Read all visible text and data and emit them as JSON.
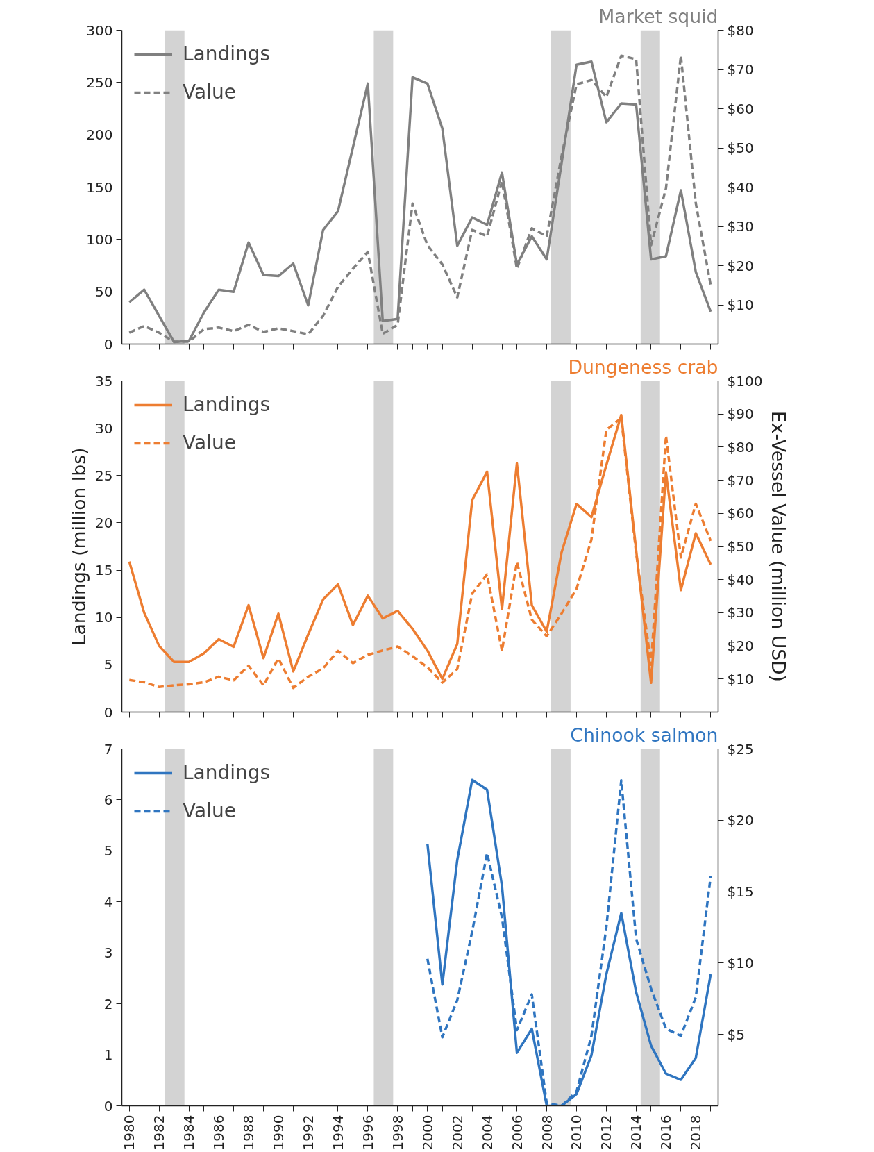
{
  "chart_data": [
    {
      "type": "line",
      "title": "Market squid",
      "x": [
        1980,
        1981,
        1982,
        1983,
        1984,
        1985,
        1986,
        1987,
        1988,
        1989,
        1990,
        1991,
        1992,
        1993,
        1994,
        1995,
        1996,
        1997,
        1998,
        1999,
        2000,
        2001,
        2002,
        2003,
        2004,
        2005,
        2006,
        2007,
        2008,
        2009,
        2010,
        2011,
        2012,
        2013,
        2014,
        2015,
        2016,
        2017,
        2018,
        2019
      ],
      "xlim": [
        1979.5,
        2019.5
      ],
      "ylim": [
        0,
        300
      ],
      "yticks": [
        0,
        50,
        100,
        150,
        200,
        250,
        300
      ],
      "y2lim": [
        0,
        80
      ],
      "y2ticks": [
        {
          "value": 10,
          "label": "$10"
        },
        {
          "value": 20,
          "label": "$20"
        },
        {
          "value": 30,
          "label": "$30"
        },
        {
          "value": 40,
          "label": "$40"
        },
        {
          "value": 50,
          "label": "$50"
        },
        {
          "value": 60,
          "label": "$60"
        },
        {
          "value": 70,
          "label": "$70"
        },
        {
          "value": 80,
          "label": "$80"
        }
      ],
      "tick_labels": "y",
      "grid": false,
      "legend": "top left",
      "marker": "none",
      "bands": [
        {
          "axis": "x",
          "from": 1982.4,
          "to": 1983.7,
          "color": "#d3d3d3"
        },
        {
          "axis": "x",
          "from": 1996.4,
          "to": 1997.7,
          "color": "#d3d3d3"
        },
        {
          "axis": "x",
          "from": 2008.3,
          "to": 2009.6,
          "color": "#d3d3d3"
        },
        {
          "axis": "x",
          "from": 2014.3,
          "to": 2015.6,
          "color": "#d3d3d3"
        }
      ],
      "series": [
        {
          "name": "Landings",
          "color": "#808080",
          "line_style": "solid",
          "values": [
            40,
            52,
            27,
            2,
            3,
            30,
            52,
            50,
            97,
            66,
            65,
            77,
            37,
            109,
            127,
            188,
            249,
            22,
            24,
            255,
            249,
            206,
            94,
            121,
            114,
            164,
            76,
            103,
            81,
            173,
            267,
            270,
            212,
            230,
            229,
            81,
            84,
            147,
            69,
            31
          ]
        },
        {
          "name": "Value",
          "color": "#808080",
          "line_style": "dashed",
          "axis": "y2",
          "values": [
            2.9,
            4.6,
            2.9,
            0.6,
            0.6,
            3.8,
            4.2,
            3.3,
            4.9,
            3.1,
            4.0,
            3.3,
            2.5,
            7.2,
            14.6,
            19.2,
            23.5,
            2.6,
            4.9,
            35.8,
            25.2,
            20.3,
            11.9,
            29.1,
            27.5,
            41.5,
            19.2,
            29.5,
            27.5,
            48,
            66.2,
            67.3,
            63,
            73.5,
            72.6,
            25.2,
            39.7,
            73.5,
            35.9,
            15
          ]
        }
      ]
    },
    {
      "type": "line",
      "title": "Dungeness crab",
      "ylabel": "Landings (million lbs)",
      "y2label": "Ex-Vessel Value (million USD)",
      "x": [
        1980,
        1981,
        1982,
        1983,
        1984,
        1985,
        1986,
        1987,
        1988,
        1989,
        1990,
        1991,
        1992,
        1993,
        1994,
        1995,
        1996,
        1997,
        1998,
        1999,
        2000,
        2001,
        2002,
        2003,
        2004,
        2005,
        2006,
        2007,
        2008,
        2009,
        2010,
        2011,
        2012,
        2013,
        2014,
        2015,
        2016,
        2017,
        2018,
        2019
      ],
      "xlim": [
        1979.5,
        2019.5
      ],
      "ylim": [
        0,
        35
      ],
      "yticks": [
        0,
        5,
        10,
        15,
        20,
        25,
        30,
        35
      ],
      "y2lim": [
        0,
        100
      ],
      "y2ticks": [
        {
          "value": 10,
          "label": "$10"
        },
        {
          "value": 20,
          "label": "$20"
        },
        {
          "value": 30,
          "label": "$30"
        },
        {
          "value": 40,
          "label": "$40"
        },
        {
          "value": 50,
          "label": "$50"
        },
        {
          "value": 60,
          "label": "$60"
        },
        {
          "value": 70,
          "label": "$70"
        },
        {
          "value": 80,
          "label": "$80"
        },
        {
          "value": 90,
          "label": "$90"
        },
        {
          "value": 100,
          "label": "$100"
        }
      ],
      "tick_labels": "y",
      "grid": false,
      "legend": "top left",
      "marker": "none",
      "bands": [
        {
          "axis": "x",
          "from": 1982.4,
          "to": 1983.7,
          "color": "#d3d3d3"
        },
        {
          "axis": "x",
          "from": 1996.4,
          "to": 1997.7,
          "color": "#d3d3d3"
        },
        {
          "axis": "x",
          "from": 2008.3,
          "to": 2009.6,
          "color": "#d3d3d3"
        },
        {
          "axis": "x",
          "from": 2014.3,
          "to": 2015.6,
          "color": "#d3d3d3"
        }
      ],
      "series": [
        {
          "name": "Landings",
          "color": "#ed7d31",
          "line_style": "solid",
          "values": [
            15.9,
            10.5,
            7.0,
            5.3,
            5.3,
            6.2,
            7.7,
            6.9,
            11.3,
            5.7,
            10.4,
            4.3,
            8.2,
            11.9,
            13.5,
            9.2,
            12.3,
            9.9,
            10.7,
            8.8,
            6.5,
            3.5,
            7.2,
            22.4,
            25.4,
            10.9,
            26.3,
            11.3,
            8.5,
            16.9,
            22.0,
            20.6,
            26.1,
            31.4,
            17.1,
            3.1,
            25.3,
            12.9,
            18.9,
            15.6
          ]
        },
        {
          "name": "Value",
          "color": "#ed7d31",
          "line_style": "dashed",
          "axis": "y2",
          "values": [
            9.7,
            9.0,
            7.6,
            8.1,
            8.4,
            9.0,
            10.7,
            9.6,
            14.0,
            8.1,
            16.2,
            7.3,
            10.7,
            13.2,
            18.5,
            14.8,
            17.3,
            18.6,
            19.8,
            16.9,
            13.5,
            8.9,
            13.0,
            35.8,
            41.6,
            18.5,
            45.3,
            27.9,
            22.9,
            29.8,
            37.2,
            52.1,
            85.2,
            88.8,
            48,
            14.3,
            83.4,
            46.7,
            62.9,
            51.7
          ]
        }
      ]
    },
    {
      "type": "line",
      "title": "Chinook salmon",
      "x": [
        2000,
        2001,
        2002,
        2003,
        2004,
        2005,
        2006,
        2007,
        2008,
        2009,
        2010,
        2011,
        2012,
        2013,
        2014,
        2015,
        2016,
        2017,
        2018,
        2019
      ],
      "xlim": [
        1979.5,
        2019.5
      ],
      "ylim": [
        0,
        7
      ],
      "yticks": [
        0,
        1,
        2,
        3,
        4,
        5,
        6,
        7
      ],
      "y2lim": [
        0,
        25
      ],
      "xticks": [
        1980,
        {
          "value": 1981,
          "label": null
        },
        1982,
        {
          "value": 1983,
          "label": null
        },
        1984,
        {
          "value": 1985,
          "label": null
        },
        1986,
        {
          "value": 1987,
          "label": null
        },
        1988,
        {
          "value": 1989,
          "label": null
        },
        1990,
        {
          "value": 1991,
          "label": null
        },
        1992,
        {
          "value": 1993,
          "label": null
        },
        1994,
        {
          "value": 1995,
          "label": null
        },
        1996,
        {
          "value": 1997,
          "label": null
        },
        1998,
        {
          "value": 1999,
          "label": null
        },
        2000,
        {
          "value": 2001,
          "label": null
        },
        2002,
        {
          "value": 2003,
          "label": null
        },
        2004,
        {
          "value": 2005,
          "label": null
        },
        2006,
        {
          "value": 2007,
          "label": null
        },
        2008,
        {
          "value": 2009,
          "label": null
        },
        2010,
        {
          "value": 2011,
          "label": null
        },
        2012,
        {
          "value": 2013,
          "label": null
        },
        2014,
        {
          "value": 2015,
          "label": null
        },
        2016,
        {
          "value": 2017,
          "label": null
        },
        2018,
        {
          "value": 2019,
          "label": null
        }
      ],
      "y2ticks": [
        {
          "value": 5,
          "label": "$5"
        },
        {
          "value": 10,
          "label": "$10"
        },
        {
          "value": 15,
          "label": "$15"
        },
        {
          "value": 20,
          "label": "$20"
        },
        {
          "value": 25,
          "label": "$25"
        }
      ],
      "grid": false,
      "legend": "top left",
      "marker": "none",
      "bands": [
        {
          "axis": "x",
          "from": 1982.4,
          "to": 1983.7,
          "color": "#d3d3d3"
        },
        {
          "axis": "x",
          "from": 1996.4,
          "to": 1997.7,
          "color": "#d3d3d3"
        },
        {
          "axis": "x",
          "from": 2008.3,
          "to": 2009.6,
          "color": "#d3d3d3"
        },
        {
          "axis": "x",
          "from": 2014.3,
          "to": 2015.6,
          "color": "#d3d3d3"
        }
      ],
      "series": [
        {
          "name": "Landings",
          "color": "#2f75c0",
          "line_style": "solid",
          "values": [
            5.14,
            2.38,
            4.82,
            6.39,
            6.2,
            4.31,
            1.04,
            1.51,
            0,
            0,
            0.23,
            0.99,
            2.58,
            3.78,
            2.23,
            1.18,
            0.63,
            0.51,
            0.94,
            2.58
          ]
        },
        {
          "name": "Value",
          "color": "#2f75c0",
          "line_style": "dashed",
          "axis": "y2",
          "values": [
            10.3,
            4.8,
            7.4,
            12.2,
            17.7,
            13.2,
            5.3,
            7.8,
            0.2,
            0,
            1.0,
            4.9,
            12.5,
            22.8,
            11.7,
            8.2,
            5.4,
            4.9,
            7.6,
            16.1
          ]
        }
      ]
    }
  ]
}
